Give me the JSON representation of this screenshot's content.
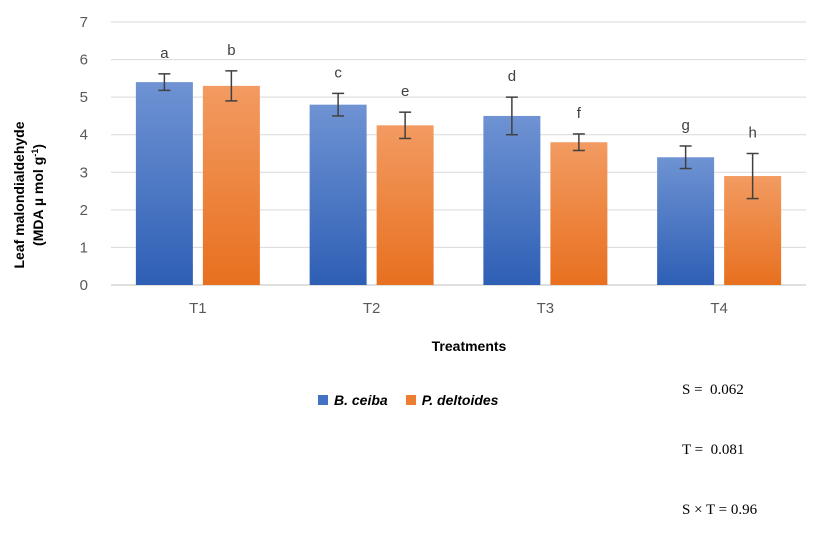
{
  "chart_data": {
    "type": "bar",
    "categories": [
      "T1",
      "T2",
      "T3",
      "T4"
    ],
    "series": [
      {
        "name": "B. ceiba",
        "color": "#4472C4",
        "values": [
          5.4,
          4.8,
          4.5,
          3.4
        ],
        "error": [
          0.22,
          0.3,
          0.5,
          0.3
        ],
        "labels": [
          "a",
          "c",
          "d",
          "g"
        ]
      },
      {
        "name": "P. deltoides",
        "color": "#ED7D31",
        "values": [
          5.3,
          4.25,
          3.8,
          2.9
        ],
        "error": [
          0.4,
          0.35,
          0.22,
          0.6
        ],
        "labels": [
          "b",
          "e",
          "f",
          "h"
        ]
      }
    ],
    "xlabel": "Treatments",
    "ylabel_line1": "Leaf malondialdehyde",
    "ylabel_line2": "(MDA µ mol g",
    "ylabel_sup": "-1",
    "ylabel_close": ")",
    "ylim": [
      0,
      7
    ],
    "yticks": [
      0,
      1,
      2,
      3,
      4,
      5,
      6,
      7
    ],
    "grid": true,
    "legend_position": "bottom"
  },
  "stats": {
    "s": "S =  0.062",
    "t": "T =  0.081",
    "st": "S × T = 0.96"
  }
}
